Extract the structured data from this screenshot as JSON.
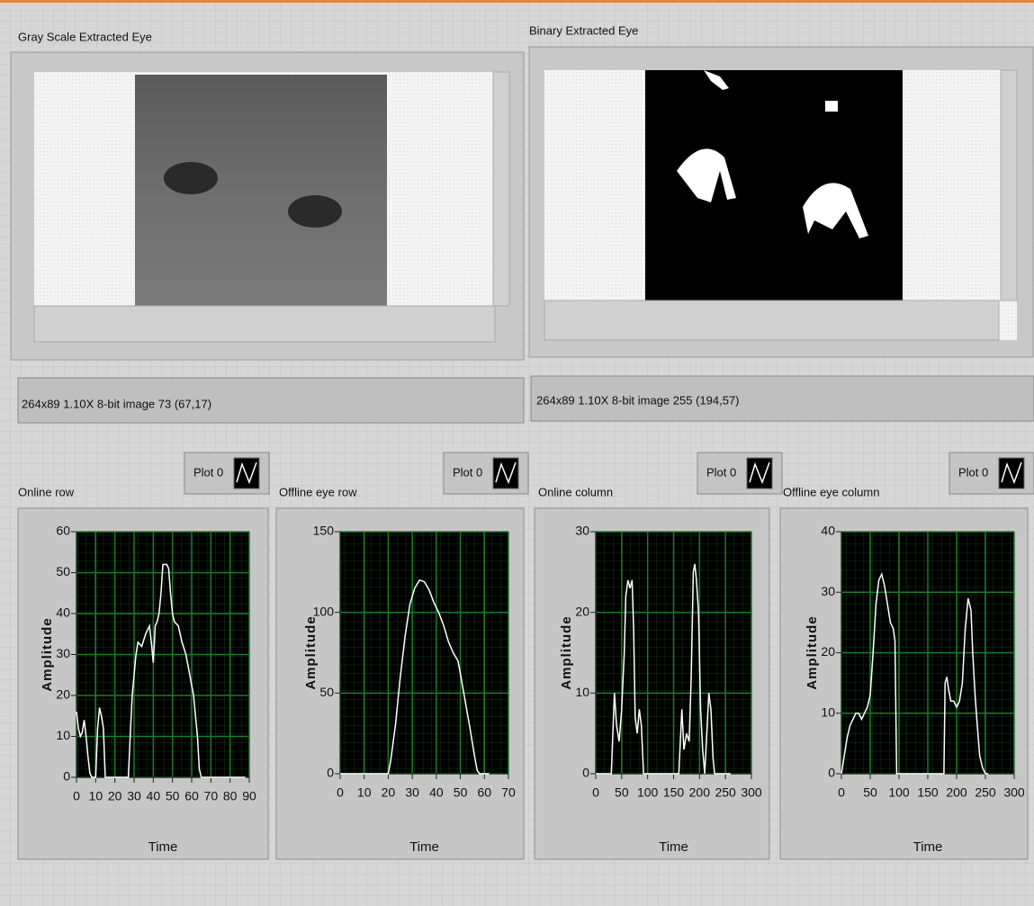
{
  "panels": [
    {
      "title": "Gray  Scale Extracted Eye",
      "info": "264x89 1.10X 8-bit image 73    (67,17)"
    },
    {
      "title": "Binary Extracted Eye",
      "info": "264x89 1.10X 8-bit image 255    (194,57)"
    }
  ],
  "chart_data": [
    {
      "type": "line",
      "title": "Online row",
      "xlabel": "Time",
      "ylabel": "Amplitude",
      "grid": true,
      "x": [
        0,
        1,
        2,
        3,
        4,
        5,
        6,
        7,
        8,
        10,
        11,
        12,
        13,
        14,
        15,
        27,
        28,
        29,
        31,
        32,
        34,
        36,
        38,
        39,
        40,
        41,
        42,
        43,
        44,
        45,
        47,
        48,
        49,
        50,
        51,
        53,
        55,
        57,
        59,
        61,
        63,
        64,
        65,
        88
      ],
      "series": [
        {
          "name": "Plot 0",
          "color": "#ffffff",
          "values": [
            16,
            12,
            10,
            11,
            14,
            10,
            5,
            1,
            0,
            0,
            12,
            17,
            15,
            12,
            0,
            0,
            10,
            20,
            30,
            33,
            32,
            35,
            37,
            33,
            28,
            37,
            38,
            40,
            45,
            52,
            52,
            51,
            45,
            40,
            38,
            37,
            33,
            30,
            25,
            20,
            10,
            2,
            0,
            0
          ]
        }
      ],
      "xlim": [
        0,
        90
      ],
      "ylim": [
        0,
        60
      ],
      "xticks": [
        0,
        10,
        20,
        30,
        40,
        50,
        60,
        70,
        80,
        90
      ],
      "yticks": [
        0,
        10,
        20,
        30,
        40,
        50,
        60
      ]
    },
    {
      "type": "line",
      "title": "Offline  eye row",
      "xlabel": "Time",
      "ylabel": "Amplitude",
      "grid": true,
      "x": [
        0,
        20,
        21,
        23,
        25,
        27,
        29,
        31,
        33,
        35,
        37,
        39,
        41,
        43,
        45,
        47,
        49,
        50,
        52,
        54,
        56,
        57,
        58,
        62
      ],
      "series": [
        {
          "name": "Plot 0",
          "color": "#ffffff",
          "values": [
            0,
            0,
            8,
            30,
            60,
            85,
            105,
            115,
            120,
            119,
            114,
            106,
            100,
            92,
            82,
            75,
            70,
            62,
            45,
            28,
            10,
            2,
            0,
            0
          ]
        }
      ],
      "xlim": [
        0,
        70
      ],
      "ylim": [
        0,
        150
      ],
      "xticks": [
        0,
        10,
        20,
        30,
        40,
        50,
        60,
        70
      ],
      "yticks": [
        0,
        50,
        100,
        150
      ]
    },
    {
      "type": "line",
      "title": "Online column",
      "xlabel": "Time",
      "ylabel": "Amplitude",
      "grid": true,
      "x": [
        0,
        30,
        33,
        36,
        40,
        45,
        50,
        55,
        58,
        62,
        66,
        70,
        73,
        76,
        80,
        84,
        88,
        92,
        160,
        163,
        166,
        170,
        175,
        180,
        184,
        188,
        191,
        194,
        198,
        202,
        206,
        210,
        214,
        218,
        222,
        226,
        229,
        260
      ],
      "series": [
        {
          "name": "Plot 0",
          "color": "#ffffff",
          "values": [
            0,
            0,
            5,
            10,
            6,
            4,
            8,
            15,
            22,
            24,
            23,
            24,
            18,
            7,
            5,
            8,
            6,
            0,
            0,
            4,
            8,
            3,
            5,
            4,
            12,
            25,
            26,
            24,
            20,
            8,
            3,
            0,
            5,
            10,
            8,
            2,
            0,
            0
          ]
        }
      ],
      "xlim": [
        0,
        300
      ],
      "ylim": [
        0,
        30
      ],
      "xticks": [
        0,
        50,
        100,
        150,
        200,
        250,
        300
      ],
      "yticks": [
        0,
        10,
        20,
        30
      ]
    },
    {
      "type": "line",
      "title": "Offline eye column",
      "xlabel": "Time",
      "ylabel": "Amplitude",
      "grid": true,
      "x": [
        0,
        5,
        10,
        15,
        20,
        25,
        30,
        35,
        40,
        45,
        50,
        55,
        60,
        65,
        70,
        75,
        80,
        85,
        90,
        93,
        96,
        178,
        180,
        183,
        186,
        190,
        195,
        200,
        205,
        210,
        215,
        220,
        225,
        228,
        232,
        236,
        240,
        245,
        250,
        255
      ],
      "series": [
        {
          "name": "Plot 0",
          "color": "#ffffff",
          "values": [
            0,
            3,
            6,
            8,
            9,
            10,
            10,
            9,
            10,
            11,
            13,
            20,
            28,
            32,
            33,
            31,
            28,
            25,
            24,
            22,
            0,
            0,
            15,
            16,
            14,
            12,
            12,
            11,
            12,
            15,
            24,
            29,
            27,
            20,
            13,
            8,
            3,
            1,
            0,
            0
          ]
        }
      ],
      "xlim": [
        0,
        300
      ],
      "ylim": [
        0,
        40
      ],
      "xticks": [
        0,
        50,
        100,
        150,
        200,
        250,
        300
      ],
      "yticks": [
        0,
        10,
        20,
        30,
        40
      ]
    }
  ]
}
